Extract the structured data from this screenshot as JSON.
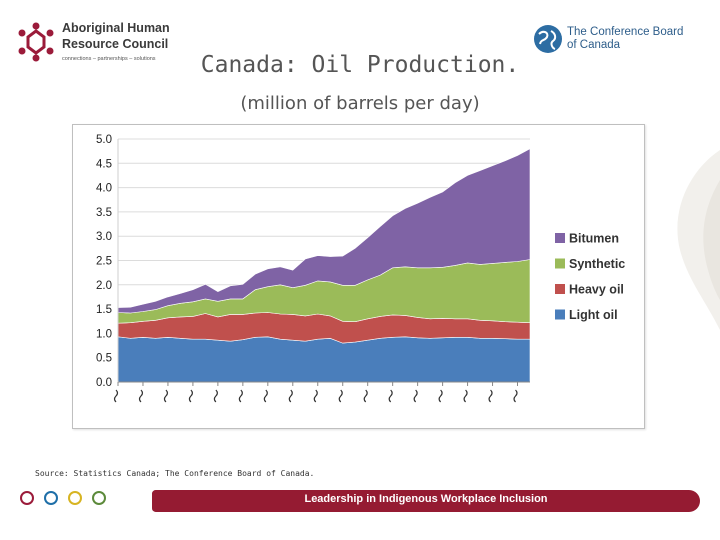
{
  "header": {
    "left_logo": {
      "line1": "Aboriginal Human",
      "line2": "Resource Council",
      "tagline": "connections – partnerships – solutions"
    },
    "right_logo": {
      "line1": "The Conference Board",
      "line2": "of Canada"
    },
    "title": "Canada: Oil Production.",
    "subtitle": "(million of barrels per day)"
  },
  "footer": {
    "source": "Source: Statistics Canada; The Conference Board of Canada.",
    "banner": "Leadership in Indigenous Workplace Inclusion",
    "circle_colors": [
      "#9b1b3a",
      "#1f6fa8",
      "#d7b422",
      "#5c8a3b"
    ]
  },
  "colors": {
    "bitumen": "#7f63a5",
    "synthetic": "#9bbb59",
    "heavy": "#c0504d",
    "light": "#4a7ebb"
  },
  "chart_data": {
    "type": "area",
    "stacked": true,
    "title": "Canada: Oil Production.",
    "subtitle": "(million of barrels per day)",
    "ylim": [
      0,
      5.0
    ],
    "yticks": [
      "0.0",
      "0.5",
      "1.0",
      "1.5",
      "2.0",
      "2.5",
      "3.0",
      "3.5",
      "4.0",
      "4.5",
      "5.0"
    ],
    "x_tick_labels_legible": false,
    "legend_position": "right",
    "series": [
      {
        "name": "Light oil",
        "key": "light",
        "values": [
          0.93,
          0.9,
          0.92,
          0.9,
          0.92,
          0.9,
          0.88,
          0.88,
          0.86,
          0.84,
          0.87,
          0.92,
          0.93,
          0.88,
          0.86,
          0.84,
          0.88,
          0.9,
          0.8,
          0.82,
          0.86,
          0.9,
          0.92,
          0.93,
          0.91,
          0.9,
          0.91,
          0.92,
          0.92,
          0.9,
          0.9,
          0.89,
          0.88,
          0.88
        ]
      },
      {
        "name": "Heavy oil",
        "key": "heavy",
        "values": [
          0.28,
          0.32,
          0.33,
          0.37,
          0.4,
          0.44,
          0.47,
          0.53,
          0.48,
          0.55,
          0.52,
          0.5,
          0.5,
          0.52,
          0.53,
          0.52,
          0.52,
          0.46,
          0.45,
          0.42,
          0.44,
          0.45,
          0.46,
          0.44,
          0.42,
          0.4,
          0.4,
          0.38,
          0.38,
          0.37,
          0.36,
          0.35,
          0.35,
          0.34
        ]
      },
      {
        "name": "Synthetic",
        "key": "synthetic",
        "values": [
          0.22,
          0.2,
          0.2,
          0.22,
          0.25,
          0.28,
          0.3,
          0.3,
          0.32,
          0.32,
          0.32,
          0.48,
          0.53,
          0.6,
          0.55,
          0.63,
          0.68,
          0.7,
          0.74,
          0.75,
          0.8,
          0.85,
          0.97,
          1.0,
          1.02,
          1.05,
          1.05,
          1.1,
          1.15,
          1.15,
          1.18,
          1.22,
          1.25,
          1.3
        ]
      },
      {
        "name": "Bitumen",
        "key": "bitumen",
        "values": [
          0.1,
          0.12,
          0.15,
          0.17,
          0.18,
          0.2,
          0.25,
          0.3,
          0.2,
          0.27,
          0.3,
          0.32,
          0.37,
          0.37,
          0.36,
          0.54,
          0.52,
          0.52,
          0.6,
          0.76,
          0.87,
          1.0,
          1.07,
          1.2,
          1.33,
          1.45,
          1.55,
          1.7,
          1.8,
          1.93,
          2.01,
          2.09,
          2.18,
          2.28
        ]
      }
    ]
  }
}
